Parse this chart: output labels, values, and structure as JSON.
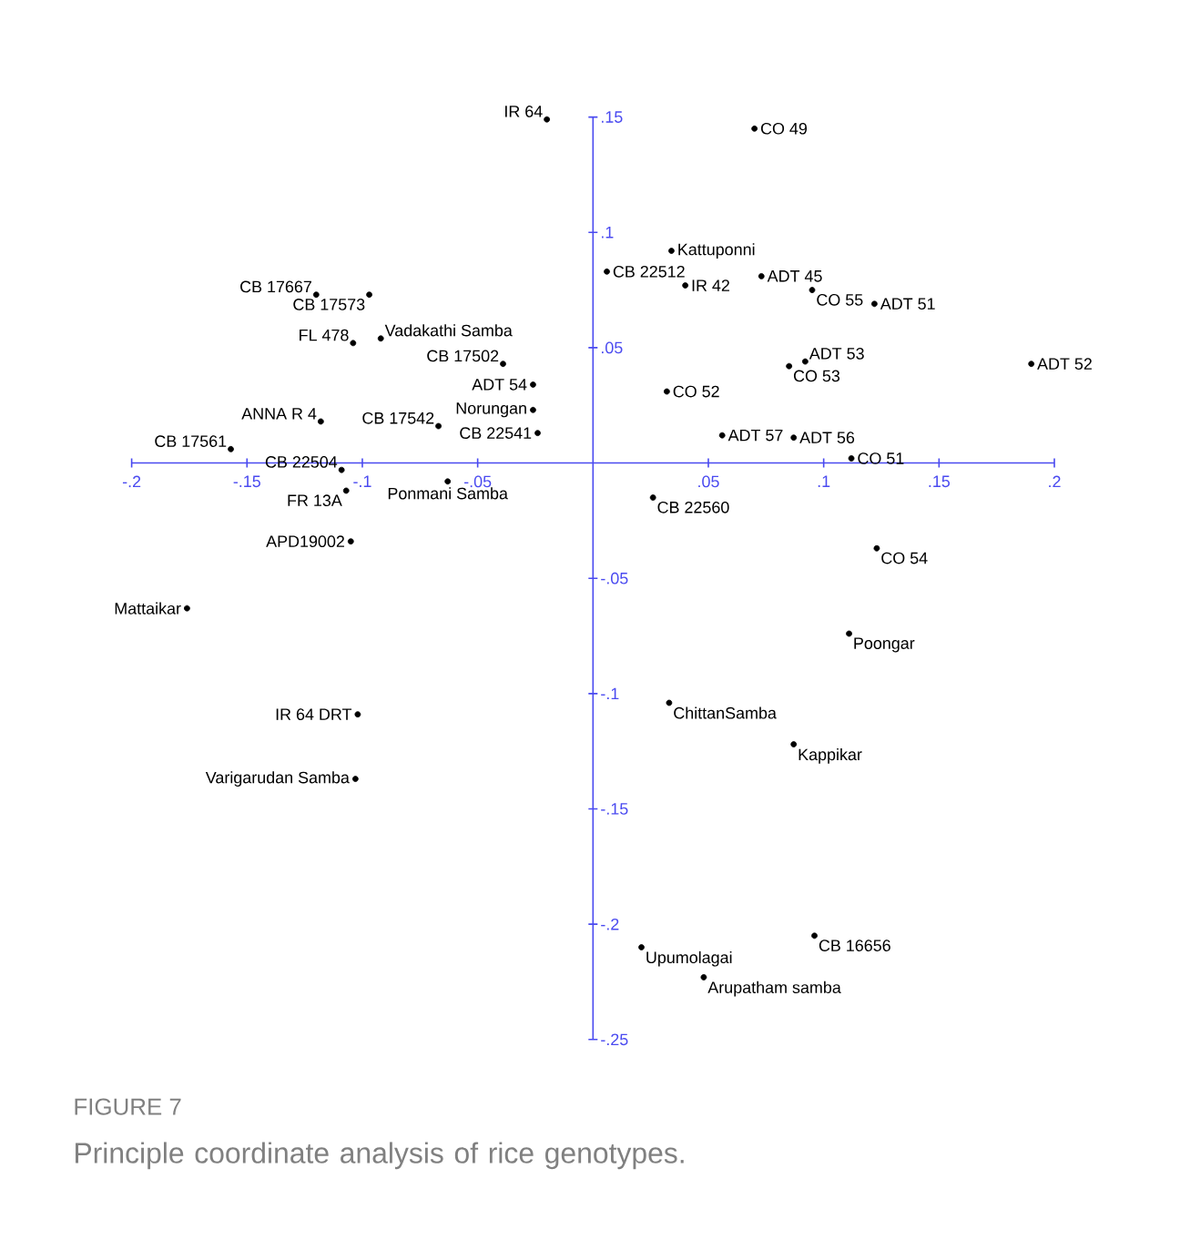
{
  "chart_data": {
    "type": "scatter",
    "annotations": [
      "FIGURE 7",
      "Principle coordinate analysis of rice genotypes."
    ],
    "xlim": [
      -0.2,
      0.2
    ],
    "ylim": [
      -0.25,
      0.15
    ],
    "xticks": [
      {
        "value": -0.2,
        "label": "-.2"
      },
      {
        "value": -0.15,
        "label": "-.15"
      },
      {
        "value": -0.1,
        "label": "-.1"
      },
      {
        "value": -0.05,
        "label": "-.05"
      },
      {
        "value": 0.05,
        "label": ".05"
      },
      {
        "value": 0.1,
        "label": ".1"
      },
      {
        "value": 0.15,
        "label": ".15"
      },
      {
        "value": 0.2,
        "label": ".2"
      }
    ],
    "yticks": [
      {
        "value": 0.15,
        "label": ".15"
      },
      {
        "value": 0.1,
        "label": ".1"
      },
      {
        "value": 0.05,
        "label": ".05"
      },
      {
        "value": -0.05,
        "label": "-.05"
      },
      {
        "value": -0.1,
        "label": "-.1"
      },
      {
        "value": -0.15,
        "label": "-.15"
      },
      {
        "value": -0.2,
        "label": "-.2"
      },
      {
        "value": -0.25,
        "label": "-.25"
      }
    ],
    "marker": "circle",
    "legend": false,
    "grid": false,
    "series": [
      {
        "name": "IR 64",
        "color": "#000000",
        "x": [
          -0.02
        ],
        "values": [
          0.149
        ]
      },
      {
        "name": "CB 17667",
        "color": "#000000",
        "x": [
          -0.12
        ],
        "values": [
          0.073
        ]
      },
      {
        "name": "CB 17573",
        "color": "#000000",
        "x": [
          -0.097
        ],
        "values": [
          0.073
        ]
      },
      {
        "name": "FL 478",
        "color": "#000000",
        "x": [
          -0.104
        ],
        "values": [
          0.052
        ]
      },
      {
        "name": "Vadakathi Samba",
        "color": "#000000",
        "x": [
          -0.092
        ],
        "values": [
          0.054
        ]
      },
      {
        "name": "CB 17502",
        "color": "#000000",
        "x": [
          -0.039
        ],
        "values": [
          0.043
        ]
      },
      {
        "name": "ADT 54",
        "color": "#000000",
        "x": [
          -0.026
        ],
        "values": [
          0.034
        ]
      },
      {
        "name": "Norungan",
        "color": "#000000",
        "x": [
          -0.026
        ],
        "values": [
          0.023
        ]
      },
      {
        "name": "CB 22541",
        "color": "#000000",
        "x": [
          -0.024
        ],
        "values": [
          0.013
        ]
      },
      {
        "name": "ANNA R 4",
        "color": "#000000",
        "x": [
          -0.118
        ],
        "values": [
          0.018
        ]
      },
      {
        "name": "CB 17542",
        "color": "#000000",
        "x": [
          -0.067
        ],
        "values": [
          0.016
        ]
      },
      {
        "name": "CB 17561",
        "color": "#000000",
        "x": [
          -0.157
        ],
        "values": [
          0.006
        ]
      },
      {
        "name": "CB 22504",
        "color": "#000000",
        "x": [
          -0.109
        ],
        "values": [
          -0.003
        ]
      },
      {
        "name": "Ponmani Samba",
        "color": "#000000",
        "x": [
          -0.063
        ],
        "values": [
          -0.008
        ]
      },
      {
        "name": "FR 13A",
        "color": "#000000",
        "x": [
          -0.107
        ],
        "values": [
          -0.012
        ]
      },
      {
        "name": "APD19002",
        "color": "#000000",
        "x": [
          -0.105
        ],
        "values": [
          -0.034
        ]
      },
      {
        "name": "Mattaikar",
        "color": "#000000",
        "x": [
          -0.176
        ],
        "values": [
          -0.063
        ]
      },
      {
        "name": "IR 64 DRT",
        "color": "#000000",
        "x": [
          -0.102
        ],
        "values": [
          -0.109
        ]
      },
      {
        "name": "Varigarudan Samba",
        "color": "#000000",
        "x": [
          -0.103
        ],
        "values": [
          -0.137
        ]
      },
      {
        "name": "CO 49",
        "color": "#000000",
        "x": [
          0.07
        ],
        "values": [
          0.145
        ]
      },
      {
        "name": "Kattuponni",
        "color": "#000000",
        "x": [
          0.034
        ],
        "values": [
          0.092
        ]
      },
      {
        "name": "CB 22512",
        "color": "#000000",
        "x": [
          0.006
        ],
        "values": [
          0.083
        ]
      },
      {
        "name": "IR 42",
        "color": "#000000",
        "x": [
          0.04
        ],
        "values": [
          0.077
        ]
      },
      {
        "name": "ADT 45",
        "color": "#000000",
        "x": [
          0.073
        ],
        "values": [
          0.081
        ]
      },
      {
        "name": "CO 55",
        "color": "#000000",
        "x": [
          0.095
        ],
        "values": [
          0.075
        ]
      },
      {
        "name": "ADT 51",
        "color": "#000000",
        "x": [
          0.122
        ],
        "values": [
          0.069
        ]
      },
      {
        "name": "ADT 52",
        "color": "#000000",
        "x": [
          0.19
        ],
        "values": [
          0.043
        ]
      },
      {
        "name": "CO 53",
        "color": "#000000",
        "x": [
          0.085
        ],
        "values": [
          0.042
        ]
      },
      {
        "name": "ADT 53",
        "color": "#000000",
        "x": [
          0.092
        ],
        "values": [
          0.044
        ]
      },
      {
        "name": "CO 52",
        "color": "#000000",
        "x": [
          0.032
        ],
        "values": [
          0.031
        ]
      },
      {
        "name": "ADT 57",
        "color": "#000000",
        "x": [
          0.056
        ],
        "values": [
          0.012
        ]
      },
      {
        "name": "ADT 56",
        "color": "#000000",
        "x": [
          0.087
        ],
        "values": [
          0.011
        ]
      },
      {
        "name": "CO 51",
        "color": "#000000",
        "x": [
          0.112
        ],
        "values": [
          0.002
        ]
      },
      {
        "name": "CB 22560",
        "color": "#000000",
        "x": [
          0.026
        ],
        "values": [
          -0.015
        ]
      },
      {
        "name": "CO 54",
        "color": "#000000",
        "x": [
          0.123
        ],
        "values": [
          -0.037
        ]
      },
      {
        "name": "Poongar",
        "color": "#000000",
        "x": [
          0.111
        ],
        "values": [
          -0.074
        ]
      },
      {
        "name": "ChittanSamba",
        "color": "#000000",
        "x": [
          0.033
        ],
        "values": [
          -0.104
        ]
      },
      {
        "name": "Kappikar",
        "color": "#000000",
        "x": [
          0.087
        ],
        "values": [
          -0.122
        ]
      },
      {
        "name": "Upumolagai",
        "color": "#000000",
        "x": [
          0.021
        ],
        "values": [
          -0.21
        ]
      },
      {
        "name": "Arupatham samba",
        "color": "#000000",
        "x": [
          0.048
        ],
        "values": [
          -0.223
        ]
      },
      {
        "name": "CB 16656",
        "color": "#000000",
        "x": [
          0.096
        ],
        "values": [
          -0.205
        ]
      }
    ]
  }
}
